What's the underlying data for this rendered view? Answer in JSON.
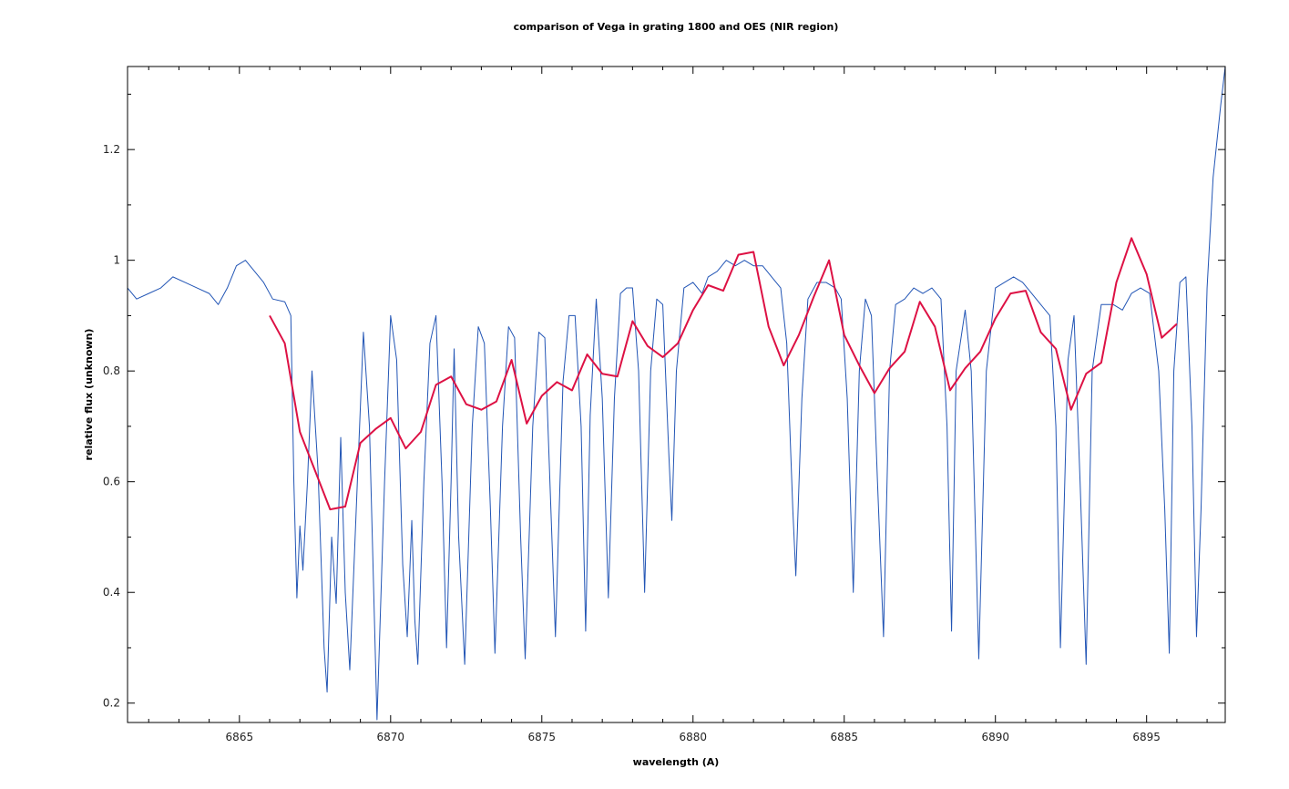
{
  "chart_data": {
    "type": "line",
    "title": "comparison of Vega in grating 1800 and OES (NIR region)",
    "xlabel": "wavelength (A)",
    "ylabel": "relative flux (unknown)",
    "xlim": [
      6861.3,
      6897.6
    ],
    "ylim": [
      0.165,
      1.35
    ],
    "x_ticks": [
      6865,
      6870,
      6875,
      6880,
      6885,
      6890,
      6895
    ],
    "y_ticks": [
      0.2,
      0.4,
      0.6,
      0.8,
      1,
      1.2
    ],
    "y_tick_labels": [
      "0.2",
      "0.4",
      "0.6",
      "0.8",
      "1",
      "1.2"
    ],
    "grid": false,
    "legend": "none",
    "series": [
      {
        "color": "#2255b5",
        "description_points": "high resolution spectrum with narrow telluric absorption lines",
        "points": [
          [
            6861.3,
            0.95
          ],
          [
            6861.6,
            0.93
          ],
          [
            6862.0,
            0.94
          ],
          [
            6862.4,
            0.95
          ],
          [
            6862.8,
            0.97
          ],
          [
            6863.2,
            0.96
          ],
          [
            6863.6,
            0.95
          ],
          [
            6864.0,
            0.94
          ],
          [
            6864.3,
            0.92
          ],
          [
            6864.6,
            0.95
          ],
          [
            6864.9,
            0.99
          ],
          [
            6865.2,
            1.0
          ],
          [
            6865.5,
            0.98
          ],
          [
            6865.8,
            0.96
          ],
          [
            6866.1,
            0.93
          ],
          [
            6866.5,
            0.925
          ],
          [
            6866.7,
            0.9
          ],
          [
            6866.8,
            0.6
          ],
          [
            6866.9,
            0.39
          ],
          [
            6867.0,
            0.52
          ],
          [
            6867.1,
            0.44
          ],
          [
            6867.25,
            0.6
          ],
          [
            6867.4,
            0.8
          ],
          [
            6867.6,
            0.62
          ],
          [
            6867.8,
            0.3
          ],
          [
            6867.9,
            0.22
          ],
          [
            6868.05,
            0.5
          ],
          [
            6868.2,
            0.38
          ],
          [
            6868.35,
            0.68
          ],
          [
            6868.5,
            0.4
          ],
          [
            6868.65,
            0.26
          ],
          [
            6868.9,
            0.6
          ],
          [
            6869.1,
            0.87
          ],
          [
            6869.3,
            0.7
          ],
          [
            6869.55,
            0.17
          ],
          [
            6869.8,
            0.6
          ],
          [
            6870.0,
            0.9
          ],
          [
            6870.2,
            0.82
          ],
          [
            6870.4,
            0.45
          ],
          [
            6870.55,
            0.32
          ],
          [
            6870.7,
            0.53
          ],
          [
            6870.8,
            0.35
          ],
          [
            6870.9,
            0.27
          ],
          [
            6871.1,
            0.6
          ],
          [
            6871.3,
            0.85
          ],
          [
            6871.5,
            0.9
          ],
          [
            6871.7,
            0.6
          ],
          [
            6871.85,
            0.3
          ],
          [
            6872.0,
            0.6
          ],
          [
            6872.1,
            0.84
          ],
          [
            6872.25,
            0.5
          ],
          [
            6872.45,
            0.27
          ],
          [
            6872.7,
            0.7
          ],
          [
            6872.9,
            0.88
          ],
          [
            6873.1,
            0.85
          ],
          [
            6873.3,
            0.55
          ],
          [
            6873.45,
            0.29
          ],
          [
            6873.7,
            0.7
          ],
          [
            6873.9,
            0.88
          ],
          [
            6874.1,
            0.86
          ],
          [
            6874.3,
            0.5
          ],
          [
            6874.45,
            0.28
          ],
          [
            6874.7,
            0.7
          ],
          [
            6874.9,
            0.87
          ],
          [
            6875.1,
            0.86
          ],
          [
            6875.3,
            0.55
          ],
          [
            6875.45,
            0.32
          ],
          [
            6875.7,
            0.78
          ],
          [
            6875.9,
            0.9
          ],
          [
            6876.1,
            0.9
          ],
          [
            6876.3,
            0.7
          ],
          [
            6876.45,
            0.33
          ],
          [
            6876.6,
            0.72
          ],
          [
            6876.8,
            0.93
          ],
          [
            6877.0,
            0.75
          ],
          [
            6877.2,
            0.39
          ],
          [
            6877.4,
            0.75
          ],
          [
            6877.6,
            0.94
          ],
          [
            6877.8,
            0.95
          ],
          [
            6878.0,
            0.95
          ],
          [
            6878.2,
            0.8
          ],
          [
            6878.4,
            0.4
          ],
          [
            6878.6,
            0.8
          ],
          [
            6878.8,
            0.93
          ],
          [
            6879.0,
            0.92
          ],
          [
            6879.2,
            0.65
          ],
          [
            6879.3,
            0.53
          ],
          [
            6879.45,
            0.8
          ],
          [
            6879.7,
            0.95
          ],
          [
            6880.0,
            0.96
          ],
          [
            6880.3,
            0.94
          ],
          [
            6880.5,
            0.97
          ],
          [
            6880.8,
            0.98
          ],
          [
            6881.1,
            1.0
          ],
          [
            6881.4,
            0.99
          ],
          [
            6881.7,
            1.0
          ],
          [
            6882.0,
            0.99
          ],
          [
            6882.3,
            0.99
          ],
          [
            6882.6,
            0.97
          ],
          [
            6882.9,
            0.95
          ],
          [
            6883.1,
            0.85
          ],
          [
            6883.3,
            0.55
          ],
          [
            6883.4,
            0.43
          ],
          [
            6883.6,
            0.75
          ],
          [
            6883.8,
            0.93
          ],
          [
            6884.1,
            0.96
          ],
          [
            6884.4,
            0.96
          ],
          [
            6884.7,
            0.95
          ],
          [
            6884.9,
            0.93
          ],
          [
            6885.1,
            0.75
          ],
          [
            6885.3,
            0.4
          ],
          [
            6885.5,
            0.8
          ],
          [
            6885.7,
            0.93
          ],
          [
            6885.9,
            0.9
          ],
          [
            6886.1,
            0.6
          ],
          [
            6886.3,
            0.32
          ],
          [
            6886.5,
            0.8
          ],
          [
            6886.7,
            0.92
          ],
          [
            6887.0,
            0.93
          ],
          [
            6887.3,
            0.95
          ],
          [
            6887.6,
            0.94
          ],
          [
            6887.9,
            0.95
          ],
          [
            6888.2,
            0.93
          ],
          [
            6888.4,
            0.7
          ],
          [
            6888.55,
            0.33
          ],
          [
            6888.7,
            0.8
          ],
          [
            6889.0,
            0.91
          ],
          [
            6889.2,
            0.8
          ],
          [
            6889.45,
            0.28
          ],
          [
            6889.7,
            0.8
          ],
          [
            6890.0,
            0.95
          ],
          [
            6890.3,
            0.96
          ],
          [
            6890.6,
            0.97
          ],
          [
            6890.9,
            0.96
          ],
          [
            6891.2,
            0.94
          ],
          [
            6891.5,
            0.92
          ],
          [
            6891.8,
            0.9
          ],
          [
            6892.0,
            0.7
          ],
          [
            6892.15,
            0.3
          ],
          [
            6892.4,
            0.82
          ],
          [
            6892.6,
            0.9
          ],
          [
            6892.8,
            0.6
          ],
          [
            6893.0,
            0.27
          ],
          [
            6893.2,
            0.8
          ],
          [
            6893.5,
            0.92
          ],
          [
            6893.9,
            0.92
          ],
          [
            6894.2,
            0.91
          ],
          [
            6894.5,
            0.94
          ],
          [
            6894.8,
            0.95
          ],
          [
            6895.1,
            0.94
          ],
          [
            6895.4,
            0.8
          ],
          [
            6895.6,
            0.55
          ],
          [
            6895.75,
            0.29
          ],
          [
            6895.9,
            0.8
          ],
          [
            6896.1,
            0.96
          ],
          [
            6896.3,
            0.97
          ],
          [
            6896.5,
            0.7
          ],
          [
            6896.65,
            0.32
          ],
          [
            6896.8,
            0.55
          ],
          [
            6897.0,
            0.95
          ],
          [
            6897.2,
            1.15
          ],
          [
            6897.45,
            1.28
          ],
          [
            6897.6,
            1.35
          ]
        ]
      },
      {
        "color": "#dd1144",
        "points": [
          [
            6866.0,
            0.9
          ],
          [
            6866.5,
            0.85
          ],
          [
            6867.0,
            0.69
          ],
          [
            6867.5,
            0.62
          ],
          [
            6868.0,
            0.55
          ],
          [
            6868.5,
            0.555
          ],
          [
            6869.0,
            0.67
          ],
          [
            6869.5,
            0.695
          ],
          [
            6870.0,
            0.715
          ],
          [
            6870.5,
            0.66
          ],
          [
            6871.0,
            0.69
          ],
          [
            6871.5,
            0.775
          ],
          [
            6872.0,
            0.79
          ],
          [
            6872.5,
            0.74
          ],
          [
            6873.0,
            0.73
          ],
          [
            6873.5,
            0.745
          ],
          [
            6874.0,
            0.82
          ],
          [
            6874.5,
            0.705
          ],
          [
            6875.0,
            0.755
          ],
          [
            6875.5,
            0.78
          ],
          [
            6876.0,
            0.765
          ],
          [
            6876.5,
            0.83
          ],
          [
            6877.0,
            0.795
          ],
          [
            6877.5,
            0.79
          ],
          [
            6878.0,
            0.89
          ],
          [
            6878.5,
            0.845
          ],
          [
            6879.0,
            0.825
          ],
          [
            6879.5,
            0.85
          ],
          [
            6880.0,
            0.91
          ],
          [
            6880.5,
            0.955
          ],
          [
            6881.0,
            0.945
          ],
          [
            6881.5,
            1.01
          ],
          [
            6882.0,
            1.015
          ],
          [
            6882.5,
            0.88
          ],
          [
            6883.0,
            0.81
          ],
          [
            6883.5,
            0.865
          ],
          [
            6884.0,
            0.935
          ],
          [
            6884.5,
            1.0
          ],
          [
            6885.0,
            0.865
          ],
          [
            6885.5,
            0.81
          ],
          [
            6886.0,
            0.76
          ],
          [
            6886.5,
            0.805
          ],
          [
            6887.0,
            0.835
          ],
          [
            6887.5,
            0.925
          ],
          [
            6888.0,
            0.88
          ],
          [
            6888.5,
            0.765
          ],
          [
            6889.0,
            0.805
          ],
          [
            6889.5,
            0.835
          ],
          [
            6890.0,
            0.895
          ],
          [
            6890.5,
            0.94
          ],
          [
            6891.0,
            0.945
          ],
          [
            6891.5,
            0.87
          ],
          [
            6892.0,
            0.84
          ],
          [
            6892.5,
            0.73
          ],
          [
            6893.0,
            0.795
          ],
          [
            6893.5,
            0.815
          ],
          [
            6894.0,
            0.96
          ],
          [
            6894.5,
            1.04
          ],
          [
            6895.0,
            0.975
          ],
          [
            6895.5,
            0.86
          ],
          [
            6896.0,
            0.885
          ]
        ]
      }
    ]
  }
}
